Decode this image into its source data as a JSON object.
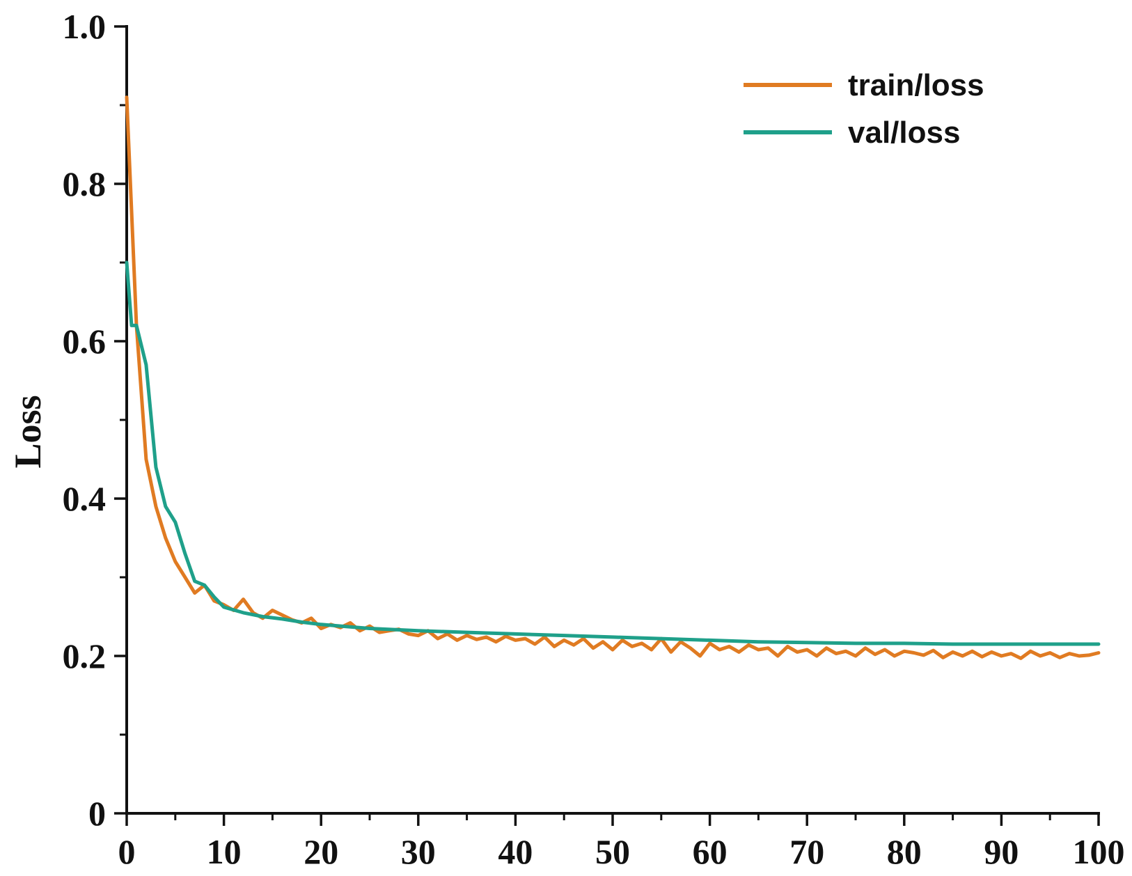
{
  "chart_data": {
    "type": "line",
    "title": "",
    "xlabel": "",
    "ylabel": "Loss",
    "xlim": [
      0,
      100
    ],
    "ylim": [
      0,
      1.0
    ],
    "x_major_ticks": [
      0,
      10,
      20,
      30,
      40,
      50,
      60,
      70,
      80,
      90,
      100
    ],
    "x_tick_labels": [
      "0",
      "10",
      "20",
      "30",
      "40",
      "50",
      "60",
      "70",
      "80",
      "90",
      "100"
    ],
    "y_major_ticks": [
      0,
      0.2,
      0.4,
      0.6,
      0.8,
      1.0
    ],
    "y_tick_labels": [
      "0",
      "0.2",
      "0.4",
      "0.6",
      "0.8",
      "1.0"
    ],
    "grid": false,
    "legend_position": "top-right",
    "series": [
      {
        "name": "train/loss",
        "color": "#E07B22",
        "x": [
          0,
          1,
          2,
          3,
          4,
          5,
          6,
          7,
          8,
          9,
          10,
          11,
          12,
          13,
          14,
          15,
          16,
          17,
          18,
          19,
          20,
          21,
          22,
          23,
          24,
          25,
          26,
          27,
          28,
          29,
          30,
          31,
          32,
          33,
          34,
          35,
          36,
          37,
          38,
          39,
          40,
          41,
          42,
          43,
          44,
          45,
          46,
          47,
          48,
          49,
          50,
          51,
          52,
          53,
          54,
          55,
          56,
          57,
          58,
          59,
          60,
          61,
          62,
          63,
          64,
          65,
          66,
          67,
          68,
          69,
          70,
          71,
          72,
          73,
          74,
          75,
          76,
          77,
          78,
          79,
          80,
          81,
          82,
          83,
          84,
          85,
          86,
          87,
          88,
          89,
          90,
          91,
          92,
          93,
          94,
          95,
          96,
          97,
          98,
          99,
          100
        ],
        "values": [
          0.91,
          0.62,
          0.45,
          0.39,
          0.35,
          0.32,
          0.3,
          0.28,
          0.29,
          0.27,
          0.265,
          0.258,
          0.272,
          0.255,
          0.248,
          0.258,
          0.252,
          0.246,
          0.242,
          0.248,
          0.235,
          0.24,
          0.236,
          0.242,
          0.232,
          0.238,
          0.23,
          0.232,
          0.234,
          0.228,
          0.226,
          0.232,
          0.222,
          0.228,
          0.22,
          0.226,
          0.221,
          0.224,
          0.218,
          0.225,
          0.22,
          0.222,
          0.215,
          0.224,
          0.212,
          0.22,
          0.214,
          0.222,
          0.21,
          0.218,
          0.208,
          0.22,
          0.212,
          0.216,
          0.208,
          0.222,
          0.205,
          0.218,
          0.21,
          0.2,
          0.216,
          0.208,
          0.212,
          0.205,
          0.214,
          0.208,
          0.21,
          0.2,
          0.212,
          0.205,
          0.208,
          0.2,
          0.21,
          0.203,
          0.206,
          0.2,
          0.21,
          0.202,
          0.208,
          0.2,
          0.206,
          0.204,
          0.201,
          0.207,
          0.198,
          0.205,
          0.2,
          0.206,
          0.199,
          0.205,
          0.2,
          0.203,
          0.197,
          0.206,
          0.2,
          0.204,
          0.198,
          0.203,
          0.2,
          0.201,
          0.204
        ]
      },
      {
        "name": "val/loss",
        "color": "#1FA08A",
        "x": [
          0,
          0.5,
          1,
          2,
          3,
          4,
          5,
          6,
          7,
          8,
          9,
          10,
          12,
          14,
          16,
          18,
          20,
          25,
          30,
          35,
          40,
          45,
          50,
          55,
          60,
          65,
          70,
          75,
          80,
          85,
          90,
          95,
          100
        ],
        "values": [
          0.7,
          0.62,
          0.62,
          0.57,
          0.44,
          0.39,
          0.37,
          0.33,
          0.295,
          0.29,
          0.275,
          0.262,
          0.255,
          0.25,
          0.247,
          0.243,
          0.24,
          0.235,
          0.232,
          0.23,
          0.228,
          0.226,
          0.224,
          0.222,
          0.22,
          0.218,
          0.217,
          0.216,
          0.216,
          0.215,
          0.215,
          0.215,
          0.215
        ]
      }
    ]
  }
}
